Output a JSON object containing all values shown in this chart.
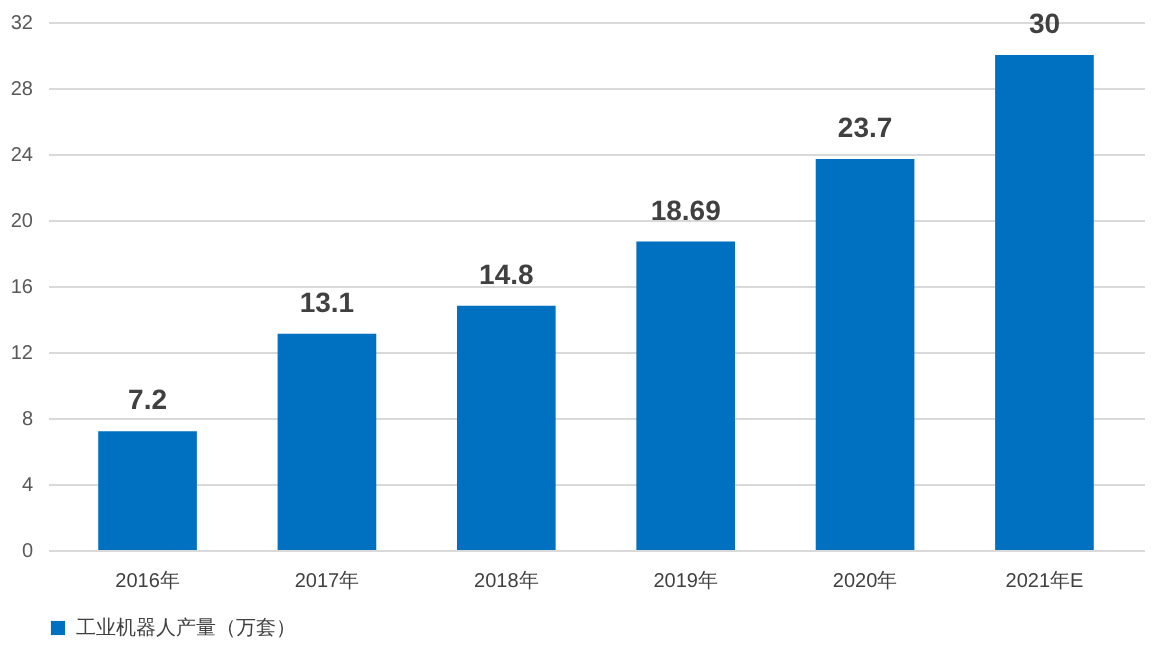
{
  "chart_data": {
    "type": "bar",
    "categories": [
      "2016年",
      "2017年",
      "2018年",
      "2019年",
      "2020年",
      "2021年E"
    ],
    "series": [
      {
        "name": "工业机器人产量（万套）",
        "color": "#0070c0",
        "values": [
          7.2,
          13.1,
          14.8,
          18.69,
          23.7,
          30
        ]
      }
    ],
    "ylim": [
      0,
      32
    ],
    "yticks": [
      0,
      4,
      8,
      12,
      16,
      20,
      24,
      28,
      32
    ],
    "grid": "y",
    "legend": "bottom",
    "data_labels": true
  }
}
